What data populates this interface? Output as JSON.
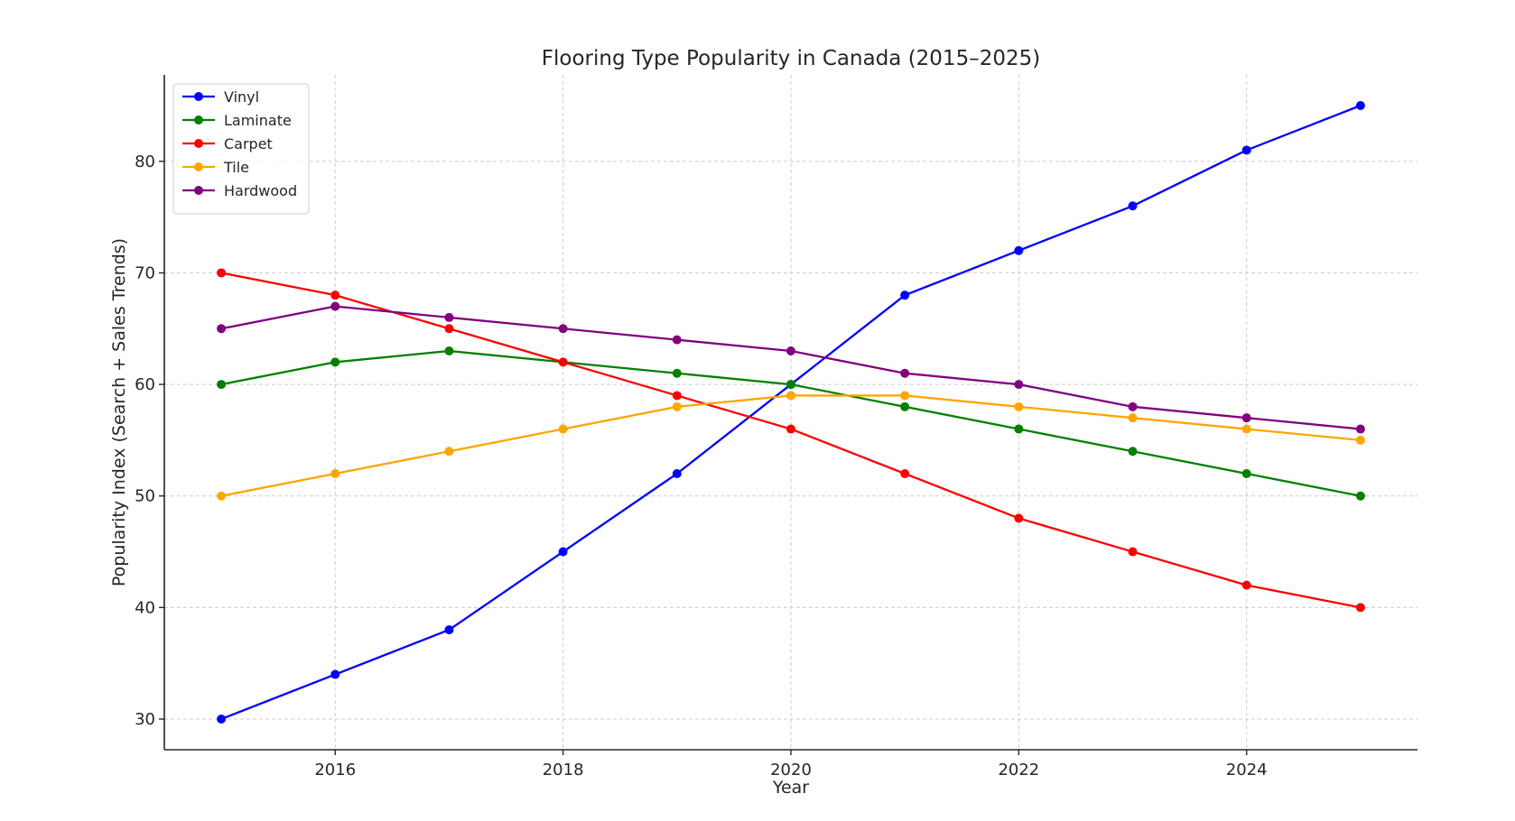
{
  "chart_data": {
    "type": "line",
    "title": "Flooring Type Popularity in Canada (2015–2025)",
    "xlabel": "Year",
    "ylabel": "Popularity Index (Search + Sales Trends)",
    "x": [
      2015,
      2016,
      2017,
      2018,
      2019,
      2020,
      2021,
      2022,
      2023,
      2024,
      2025
    ],
    "xlim": [
      2014.5,
      2025.5
    ],
    "ylim": [
      27.25,
      87.75
    ],
    "xticks": [
      2016,
      2018,
      2020,
      2022,
      2024
    ],
    "yticks": [
      30,
      40,
      50,
      60,
      70,
      80
    ],
    "grid": true,
    "legend_position": "top-left",
    "series": [
      {
        "name": "Vinyl",
        "color": "#0000ff",
        "values": [
          30,
          34,
          38,
          45,
          52,
          60,
          68,
          72,
          76,
          81,
          85
        ]
      },
      {
        "name": "Laminate",
        "color": "#008000",
        "values": [
          60,
          62,
          63,
          62,
          61,
          60,
          58,
          56,
          54,
          52,
          50
        ]
      },
      {
        "name": "Carpet",
        "color": "#ff0000",
        "values": [
          70,
          68,
          65,
          62,
          59,
          56,
          52,
          48,
          45,
          42,
          40
        ]
      },
      {
        "name": "Tile",
        "color": "#ffa500",
        "values": [
          50,
          52,
          54,
          56,
          58,
          59,
          59,
          58,
          57,
          56,
          55
        ]
      },
      {
        "name": "Hardwood",
        "color": "#800080",
        "values": [
          65,
          67,
          66,
          65,
          64,
          63,
          61,
          60,
          58,
          57,
          56
        ]
      }
    ]
  }
}
